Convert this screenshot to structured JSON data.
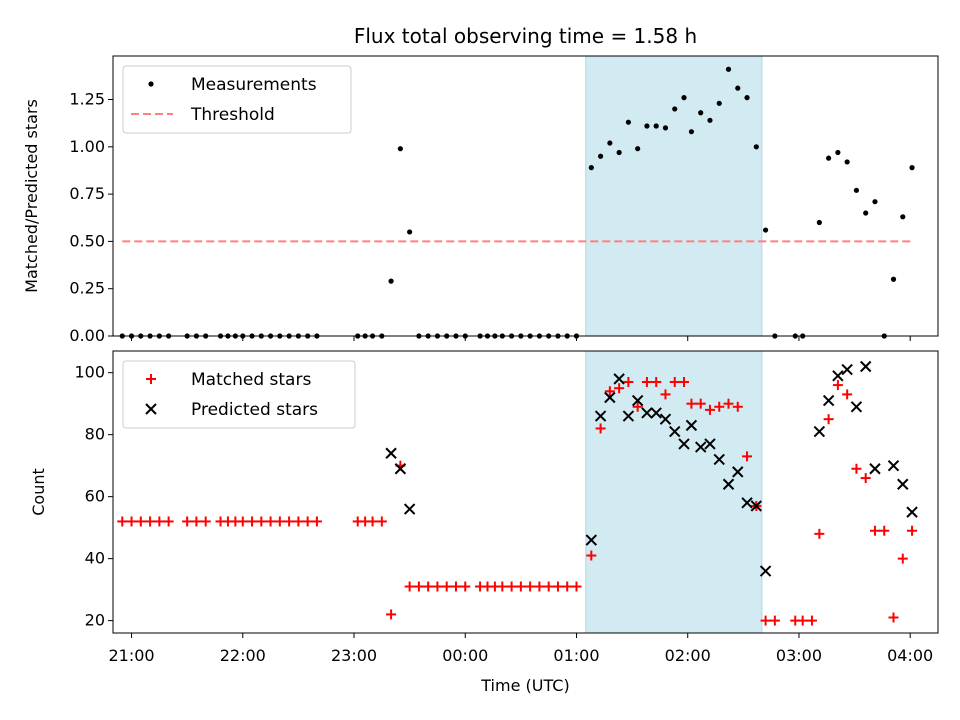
{
  "chart_data": [
    {
      "type": "scatter",
      "title": "Flux total observing time = 1.58 h",
      "ylabel": "Matched/Predicted stars",
      "xlabel": "",
      "ylim": [
        0.0,
        1.48
      ],
      "xlim": [
        "20:50",
        "04:15"
      ],
      "yticks": [
        0.0,
        0.25,
        0.5,
        0.75,
        1.0,
        1.25
      ],
      "ytick_labels": [
        "0.00",
        "0.25",
        "0.50",
        "0.75",
        "1.00",
        "1.25"
      ],
      "shaded_span": [
        "01:05",
        "02:40"
      ],
      "shade_color": "#add8e6",
      "legend_location": "upper left",
      "series": [
        {
          "name": "Measurements",
          "marker": "dot",
          "color": "#000000",
          "points": [
            [
              "20:55",
              0.0
            ],
            [
              "21:00",
              0.0
            ],
            [
              "21:05",
              0.0
            ],
            [
              "21:10",
              0.0
            ],
            [
              "21:15",
              0.0
            ],
            [
              "21:20",
              0.0
            ],
            [
              "21:30",
              0.0
            ],
            [
              "21:35",
              0.0
            ],
            [
              "21:40",
              0.0
            ],
            [
              "21:48",
              0.0
            ],
            [
              "21:52",
              0.0
            ],
            [
              "21:56",
              0.0
            ],
            [
              "22:00",
              0.0
            ],
            [
              "22:05",
              0.0
            ],
            [
              "22:10",
              0.0
            ],
            [
              "22:15",
              0.0
            ],
            [
              "22:20",
              0.0
            ],
            [
              "22:25",
              0.0
            ],
            [
              "22:30",
              0.0
            ],
            [
              "22:35",
              0.0
            ],
            [
              "22:40",
              0.0
            ],
            [
              "23:02",
              0.0
            ],
            [
              "23:06",
              0.0
            ],
            [
              "23:10",
              0.0
            ],
            [
              "23:15",
              0.0
            ],
            [
              "23:20",
              0.29
            ],
            [
              "23:25",
              0.99
            ],
            [
              "23:30",
              0.55
            ],
            [
              "23:35",
              0.0
            ],
            [
              "23:40",
              0.0
            ],
            [
              "23:45",
              0.0
            ],
            [
              "23:50",
              0.0
            ],
            [
              "23:55",
              0.0
            ],
            [
              "00:00",
              0.0
            ],
            [
              "00:08",
              0.0
            ],
            [
              "00:12",
              0.0
            ],
            [
              "00:16",
              0.0
            ],
            [
              "00:20",
              0.0
            ],
            [
              "00:25",
              0.0
            ],
            [
              "00:30",
              0.0
            ],
            [
              "00:35",
              0.0
            ],
            [
              "00:40",
              0.0
            ],
            [
              "00:45",
              0.0
            ],
            [
              "00:50",
              0.0
            ],
            [
              "00:55",
              0.0
            ],
            [
              "01:00",
              0.0
            ],
            [
              "01:08",
              0.89
            ],
            [
              "01:13",
              0.95
            ],
            [
              "01:18",
              1.02
            ],
            [
              "01:23",
              0.97
            ],
            [
              "01:28",
              1.13
            ],
            [
              "01:33",
              0.99
            ],
            [
              "01:38",
              1.11
            ],
            [
              "01:43",
              1.11
            ],
            [
              "01:48",
              1.1
            ],
            [
              "01:53",
              1.2
            ],
            [
              "01:58",
              1.26
            ],
            [
              "02:02",
              1.08
            ],
            [
              "02:07",
              1.18
            ],
            [
              "02:12",
              1.14
            ],
            [
              "02:17",
              1.23
            ],
            [
              "02:22",
              1.41
            ],
            [
              "02:27",
              1.31
            ],
            [
              "02:32",
              1.26
            ],
            [
              "02:37",
              1.0
            ],
            [
              "02:42",
              0.56
            ],
            [
              "02:47",
              0.0
            ],
            [
              "02:58",
              0.0
            ],
            [
              "03:02",
              0.0
            ],
            [
              "03:11",
              0.6
            ],
            [
              "03:16",
              0.94
            ],
            [
              "03:21",
              0.97
            ],
            [
              "03:26",
              0.92
            ],
            [
              "03:31",
              0.77
            ],
            [
              "03:36",
              0.65
            ],
            [
              "03:41",
              0.71
            ],
            [
              "03:46",
              0.0
            ],
            [
              "03:51",
              0.3
            ],
            [
              "03:56",
              0.63
            ],
            [
              "04:01",
              0.89
            ]
          ]
        },
        {
          "name": "Threshold",
          "marker": "dashed-line",
          "color": "#ff7f7f",
          "points": [
            [
              "20:55",
              0.5
            ],
            [
              "04:01",
              0.5
            ]
          ]
        }
      ]
    },
    {
      "type": "scatter",
      "title": "",
      "ylabel": "Count",
      "xlabel": "Time (UTC)",
      "ylim": [
        16,
        107
      ],
      "xlim": [
        "20:50",
        "04:15"
      ],
      "yticks": [
        20,
        40,
        60,
        80,
        100
      ],
      "ytick_labels": [
        "20",
        "40",
        "60",
        "80",
        "100"
      ],
      "xticks": [
        "21:00",
        "22:00",
        "23:00",
        "00:00",
        "01:00",
        "02:00",
        "03:00",
        "04:00"
      ],
      "xtick_labels": [
        "21:00",
        "22:00",
        "23:00",
        "00:00",
        "01:00",
        "02:00",
        "03:00",
        "04:00"
      ],
      "shaded_span": [
        "01:05",
        "02:40"
      ],
      "shade_color": "#add8e6",
      "legend_location": "upper left",
      "series": [
        {
          "name": "Matched stars",
          "marker": "plus",
          "color": "#ff0000",
          "points": [
            [
              "20:55",
              52
            ],
            [
              "21:00",
              52
            ],
            [
              "21:05",
              52
            ],
            [
              "21:10",
              52
            ],
            [
              "21:15",
              52
            ],
            [
              "21:20",
              52
            ],
            [
              "21:30",
              52
            ],
            [
              "21:35",
              52
            ],
            [
              "21:40",
              52
            ],
            [
              "21:48",
              52
            ],
            [
              "21:52",
              52
            ],
            [
              "21:56",
              52
            ],
            [
              "22:00",
              52
            ],
            [
              "22:05",
              52
            ],
            [
              "22:10",
              52
            ],
            [
              "22:15",
              52
            ],
            [
              "22:20",
              52
            ],
            [
              "22:25",
              52
            ],
            [
              "22:30",
              52
            ],
            [
              "22:35",
              52
            ],
            [
              "22:40",
              52
            ],
            [
              "23:02",
              52
            ],
            [
              "23:06",
              52
            ],
            [
              "23:10",
              52
            ],
            [
              "23:15",
              52
            ],
            [
              "23:20",
              22
            ],
            [
              "23:25",
              70
            ],
            [
              "23:30",
              31
            ],
            [
              "23:35",
              31
            ],
            [
              "23:40",
              31
            ],
            [
              "23:45",
              31
            ],
            [
              "23:50",
              31
            ],
            [
              "23:55",
              31
            ],
            [
              "00:00",
              31
            ],
            [
              "00:08",
              31
            ],
            [
              "00:12",
              31
            ],
            [
              "00:16",
              31
            ],
            [
              "00:20",
              31
            ],
            [
              "00:25",
              31
            ],
            [
              "00:30",
              31
            ],
            [
              "00:35",
              31
            ],
            [
              "00:40",
              31
            ],
            [
              "00:45",
              31
            ],
            [
              "00:50",
              31
            ],
            [
              "00:55",
              31
            ],
            [
              "01:00",
              31
            ],
            [
              "01:08",
              41
            ],
            [
              "01:13",
              82
            ],
            [
              "01:18",
              94
            ],
            [
              "01:23",
              95
            ],
            [
              "01:28",
              97
            ],
            [
              "01:33",
              89
            ],
            [
              "01:38",
              97
            ],
            [
              "01:43",
              97
            ],
            [
              "01:48",
              93
            ],
            [
              "01:53",
              97
            ],
            [
              "01:58",
              97
            ],
            [
              "02:02",
              90
            ],
            [
              "02:07",
              90
            ],
            [
              "02:12",
              88
            ],
            [
              "02:17",
              89
            ],
            [
              "02:22",
              90
            ],
            [
              "02:27",
              89
            ],
            [
              "02:32",
              73
            ],
            [
              "02:37",
              57
            ],
            [
              "02:42",
              20
            ],
            [
              "02:47",
              20
            ],
            [
              "02:58",
              20
            ],
            [
              "03:02",
              20
            ],
            [
              "03:07",
              20
            ],
            [
              "03:11",
              48
            ],
            [
              "03:16",
              85
            ],
            [
              "03:21",
              96
            ],
            [
              "03:26",
              93
            ],
            [
              "03:31",
              69
            ],
            [
              "03:36",
              66
            ],
            [
              "03:41",
              49
            ],
            [
              "03:46",
              49
            ],
            [
              "03:51",
              21
            ],
            [
              "03:56",
              40
            ],
            [
              "04:01",
              49
            ]
          ]
        },
        {
          "name": "Predicted stars",
          "marker": "x",
          "color": "#000000",
          "points": [
            [
              "23:20",
              74
            ],
            [
              "23:25",
              69
            ],
            [
              "23:30",
              56
            ],
            [
              "01:08",
              46
            ],
            [
              "01:13",
              86
            ],
            [
              "01:18",
              92
            ],
            [
              "01:23",
              98
            ],
            [
              "01:28",
              86
            ],
            [
              "01:33",
              91
            ],
            [
              "01:38",
              87
            ],
            [
              "01:43",
              87
            ],
            [
              "01:48",
              85
            ],
            [
              "01:53",
              81
            ],
            [
              "01:58",
              77
            ],
            [
              "02:02",
              83
            ],
            [
              "02:07",
              76
            ],
            [
              "02:12",
              77
            ],
            [
              "02:17",
              72
            ],
            [
              "02:22",
              64
            ],
            [
              "02:27",
              68
            ],
            [
              "02:32",
              58
            ],
            [
              "02:37",
              57
            ],
            [
              "02:42",
              36
            ],
            [
              "03:11",
              81
            ],
            [
              "03:16",
              91
            ],
            [
              "03:21",
              99
            ],
            [
              "03:26",
              101
            ],
            [
              "03:31",
              89
            ],
            [
              "03:36",
              102
            ],
            [
              "03:41",
              69
            ],
            [
              "03:51",
              70
            ],
            [
              "03:56",
              64
            ],
            [
              "04:01",
              55
            ]
          ]
        }
      ]
    }
  ]
}
